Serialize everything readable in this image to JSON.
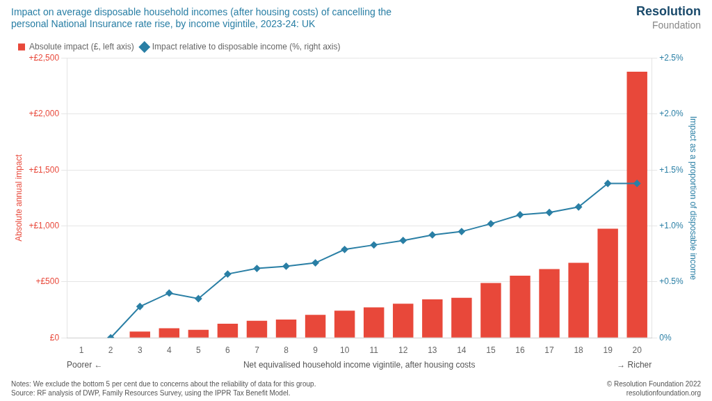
{
  "chart_data": {
    "type": "bar",
    "title": [
      "Impact on average disposable household incomes (after housing costs) of cancelling the",
      "personal National Insurance rate rise, by income vigintile, 2023-24: UK"
    ],
    "categories": [
      "1",
      "2",
      "3",
      "4",
      "5",
      "6",
      "7",
      "8",
      "9",
      "10",
      "11",
      "12",
      "13",
      "14",
      "15",
      "16",
      "17",
      "18",
      "19",
      "20"
    ],
    "xlabel": "Net equivalised household income vigintile, after housing costs",
    "ylabel": "Absolute annual impact",
    "y2label": "Impact as a proportion of disposable income",
    "series": [
      {
        "name": "Absolute impact (£, left axis)",
        "type": "bar",
        "color": "#e8483a",
        "values": [
          null,
          0,
          55,
          85,
          72,
          125,
          152,
          163,
          205,
          242,
          272,
          305,
          343,
          358,
          490,
          555,
          615,
          670,
          975,
          2380
        ]
      },
      {
        "name": "Impact relative to disposable income (%, right axis)",
        "type": "line",
        "axis": "y2",
        "color": "#2a7fa5",
        "marker": "diamond",
        "values": [
          null,
          0.0,
          0.28,
          0.4,
          0.35,
          0.57,
          0.62,
          0.64,
          0.67,
          0.79,
          0.83,
          0.87,
          0.92,
          0.95,
          1.02,
          1.1,
          1.12,
          1.17,
          1.38,
          1.38
        ]
      }
    ],
    "ylim": [
      0,
      2500
    ],
    "yticks": [
      {
        "value": 0,
        "label": "£0"
      },
      {
        "value": 500,
        "label": "+£500"
      },
      {
        "value": 1000,
        "label": "+£1,000"
      },
      {
        "value": 1500,
        "label": "+£1,500"
      },
      {
        "value": 2000,
        "label": "+£2,000"
      },
      {
        "value": 2500,
        "label": "+£2,500"
      }
    ],
    "y2lim": [
      0,
      2.5
    ],
    "y2ticks": [
      {
        "value": 0.0,
        "label": "0%"
      },
      {
        "value": 0.5,
        "label": "+0.5%"
      },
      {
        "value": 1.0,
        "label": "+1.0%"
      },
      {
        "value": 1.5,
        "label": "+1.5%"
      },
      {
        "value": 2.0,
        "label": "+2.0%"
      },
      {
        "value": 2.5,
        "label": "+2.5%"
      }
    ],
    "grid": true,
    "legend": "upper left",
    "annotations": [
      "Poorer ←",
      "→ Richer",
      "Notes: We exclude the bottom 5 per cent due to concerns about the reliability of data for this group.\nSource: RF analysis of DWP, Family Resources Survey, using the IPPR Tax Benefit Model.",
      "© Resolution Foundation 2022\nresolutionfoundation.org",
      "Resolution",
      "Foundation"
    ]
  }
}
